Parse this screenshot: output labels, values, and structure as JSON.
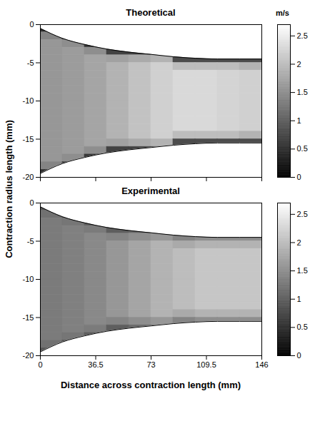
{
  "chart_data": {
    "type": "heatmap",
    "xlabel": "Distance across contraction length (mm)",
    "ylabel": "Contraction radius length (mm)",
    "xlim": [
      0,
      146
    ],
    "xticks": [
      0,
      36.5,
      73,
      109.5,
      146
    ],
    "ylim": [
      -20,
      0
    ],
    "yticks": [
      0,
      -5,
      -10,
      -15,
      -20
    ],
    "x": [
      0,
      14.6,
      29.2,
      43.8,
      58.4,
      73,
      87.6,
      102.2,
      116.8,
      131.4,
      146
    ],
    "y": [
      0,
      -1,
      -2,
      -3,
      -4,
      -5,
      -6,
      -7,
      -8,
      -9,
      -10,
      -11,
      -12,
      -13,
      -14,
      -15,
      -16,
      -17,
      -18,
      -19,
      -20
    ],
    "top_boundary": [
      -0.5,
      -1.8,
      -2.6,
      -3.2,
      -3.6,
      -3.9,
      -4.2,
      -4.4,
      -4.5,
      -4.5,
      -4.5
    ],
    "bottom_boundary": [
      -19.5,
      -18.2,
      -17.4,
      -16.8,
      -16.4,
      -16.1,
      -15.8,
      -15.6,
      -15.5,
      -15.5,
      -15.5
    ],
    "colorbar": {
      "label": "m/s",
      "range": [
        0,
        2.7
      ],
      "ticks": [
        0,
        0.5,
        1,
        1.5,
        2,
        2.5
      ]
    },
    "panels": [
      {
        "title": "Theoretical",
        "tick_labels": "y",
        "cells": [
          [
            0.5,
            null,
            null,
            null,
            null,
            null,
            null,
            null,
            null,
            null
          ],
          [
            1.4,
            0.6,
            null,
            null,
            null,
            null,
            null,
            null,
            null,
            null
          ],
          [
            1.6,
            1.5,
            0.6,
            null,
            null,
            null,
            null,
            null,
            null,
            null
          ],
          [
            1.6,
            1.65,
            1.5,
            0.7,
            0.7,
            0.8,
            null,
            null,
            null,
            null
          ],
          [
            1.6,
            1.65,
            1.75,
            1.7,
            1.8,
            1.9,
            0.8,
            0.8,
            0.8,
            0.8
          ],
          [
            1.6,
            1.65,
            1.75,
            1.9,
            2.05,
            2.2,
            2.0,
            2.0,
            2.0,
            1.9
          ],
          [
            1.6,
            1.65,
            1.75,
            1.9,
            2.05,
            2.2,
            2.3,
            2.3,
            2.25,
            2.2
          ],
          [
            1.6,
            1.65,
            1.75,
            1.9,
            2.05,
            2.2,
            2.3,
            2.3,
            2.25,
            2.2
          ],
          [
            1.6,
            1.65,
            1.75,
            1.9,
            2.05,
            2.2,
            2.3,
            2.3,
            2.25,
            2.2
          ],
          [
            1.6,
            1.65,
            1.75,
            1.9,
            2.05,
            2.2,
            2.3,
            2.3,
            2.25,
            2.2
          ],
          [
            1.6,
            1.65,
            1.75,
            1.9,
            2.05,
            2.2,
            2.3,
            2.3,
            2.25,
            2.2
          ],
          [
            1.6,
            1.65,
            1.75,
            1.9,
            2.05,
            2.2,
            2.3,
            2.3,
            2.25,
            2.2
          ],
          [
            1.6,
            1.65,
            1.75,
            1.9,
            2.05,
            2.2,
            2.3,
            2.3,
            2.25,
            2.2
          ],
          [
            1.6,
            1.65,
            1.75,
            1.9,
            2.05,
            2.2,
            2.3,
            2.3,
            2.25,
            2.2
          ],
          [
            1.6,
            1.65,
            1.75,
            1.9,
            2.05,
            2.2,
            2.0,
            2.0,
            2.0,
            1.9
          ],
          [
            1.6,
            1.65,
            1.75,
            1.7,
            1.8,
            1.9,
            0.8,
            0.8,
            0.8,
            0.8
          ],
          [
            1.6,
            1.65,
            1.5,
            0.7,
            0.7,
            0.8,
            null,
            null,
            null,
            null
          ],
          [
            1.6,
            1.5,
            0.6,
            null,
            null,
            null,
            null,
            null,
            null,
            null
          ],
          [
            1.4,
            0.6,
            null,
            null,
            null,
            null,
            null,
            null,
            null,
            null
          ],
          [
            0.5,
            null,
            null,
            null,
            null,
            null,
            null,
            null,
            null,
            null
          ]
        ]
      },
      {
        "title": "Experimental",
        "cells": [
          [
            0.9,
            null,
            null,
            null,
            null,
            null,
            null,
            null,
            null,
            null
          ],
          [
            1.2,
            0.9,
            null,
            null,
            null,
            null,
            null,
            null,
            null,
            null
          ],
          [
            1.3,
            1.25,
            1.0,
            null,
            null,
            null,
            null,
            null,
            null,
            null
          ],
          [
            1.3,
            1.35,
            1.3,
            1.0,
            1.1,
            1.2,
            null,
            null,
            null,
            null
          ],
          [
            1.3,
            1.35,
            1.45,
            1.4,
            1.5,
            1.6,
            1.4,
            1.5,
            1.5,
            1.5
          ],
          [
            1.3,
            1.35,
            1.45,
            1.6,
            1.75,
            1.9,
            1.8,
            1.9,
            1.9,
            1.9
          ],
          [
            1.3,
            1.35,
            1.45,
            1.6,
            1.75,
            1.9,
            2.0,
            2.1,
            2.1,
            2.1
          ],
          [
            1.3,
            1.35,
            1.45,
            1.6,
            1.75,
            1.9,
            2.0,
            2.1,
            2.1,
            2.1
          ],
          [
            1.3,
            1.35,
            1.45,
            1.6,
            1.75,
            1.9,
            2.0,
            2.1,
            2.1,
            2.1
          ],
          [
            1.3,
            1.35,
            1.45,
            1.6,
            1.75,
            1.9,
            2.0,
            2.1,
            2.1,
            2.1
          ],
          [
            1.3,
            1.35,
            1.45,
            1.6,
            1.75,
            1.9,
            2.0,
            2.1,
            2.1,
            2.1
          ],
          [
            1.3,
            1.35,
            1.45,
            1.6,
            1.75,
            1.9,
            2.0,
            2.1,
            2.1,
            2.1
          ],
          [
            1.3,
            1.35,
            1.45,
            1.6,
            1.75,
            1.9,
            2.0,
            2.1,
            2.1,
            2.1
          ],
          [
            1.3,
            1.35,
            1.45,
            1.6,
            1.75,
            1.9,
            2.0,
            2.1,
            2.1,
            2.1
          ],
          [
            1.3,
            1.35,
            1.45,
            1.6,
            1.75,
            1.9,
            1.8,
            1.9,
            1.9,
            1.9
          ],
          [
            1.3,
            1.35,
            1.45,
            1.4,
            1.5,
            1.6,
            1.4,
            1.5,
            1.5,
            1.5
          ],
          [
            1.3,
            1.35,
            1.3,
            1.0,
            1.1,
            1.2,
            null,
            null,
            null,
            null
          ],
          [
            1.3,
            1.25,
            1.0,
            null,
            null,
            null,
            null,
            null,
            null,
            null
          ],
          [
            1.2,
            0.9,
            null,
            null,
            null,
            null,
            null,
            null,
            null,
            null
          ],
          [
            0.9,
            null,
            null,
            null,
            null,
            null,
            null,
            null,
            null,
            null
          ]
        ]
      }
    ]
  }
}
